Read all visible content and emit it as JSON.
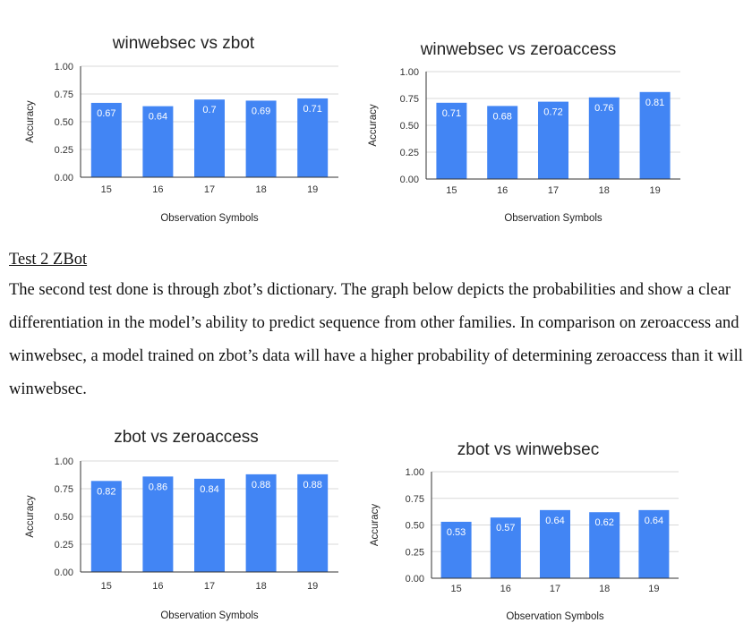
{
  "section": {
    "heading": "Test 2 ZBot",
    "paragraph": "The second test done is through zbot’s dictionary. The graph below depicts the probabilities and show a clear differentiation in the model’s ability to predict sequence from other families. In comparison on zeroaccess and winwebsec, a model trained on zbot’s data will have a higher probability of determining zeroaccess than it will winwebsec."
  },
  "colors": {
    "bar": "#4285f4",
    "grid": "#d9d9d9",
    "axis": "#333333"
  },
  "chart_data": [
    {
      "type": "bar",
      "title": "winwebsec vs zbot",
      "categories": [
        "15",
        "16",
        "17",
        "18",
        "19"
      ],
      "values": [
        0.67,
        0.64,
        0.7,
        0.69,
        0.71
      ],
      "data_labels": [
        "0.67",
        "0.64",
        "0.7",
        "0.69",
        "0.71"
      ],
      "xlabel": "Observation Symbols",
      "ylabel": "Accuracy",
      "ylim": [
        0,
        1
      ],
      "yticks": [
        "0.00",
        "0.25",
        "0.50",
        "0.75",
        "1.00"
      ],
      "grid": true
    },
    {
      "type": "bar",
      "title": "winwebsec vs zeroaccess",
      "categories": [
        "15",
        "16",
        "17",
        "18",
        "19"
      ],
      "values": [
        0.71,
        0.68,
        0.72,
        0.76,
        0.81
      ],
      "data_labels": [
        "0.71",
        "0.68",
        "0.72",
        "0.76",
        "0.81"
      ],
      "xlabel": "Observation Symbols",
      "ylabel": "Accuracy",
      "ylim": [
        0,
        1
      ],
      "yticks": [
        "0.00",
        "0.25",
        "0.50",
        "0.75",
        "1.00"
      ],
      "grid": true
    },
    {
      "type": "bar",
      "title": "zbot vs zeroaccess",
      "categories": [
        "15",
        "16",
        "17",
        "18",
        "19"
      ],
      "values": [
        0.82,
        0.86,
        0.84,
        0.88,
        0.88
      ],
      "data_labels": [
        "0.82",
        "0.86",
        "0.84",
        "0.88",
        "0.88"
      ],
      "xlabel": "Observation Symbols",
      "ylabel": "Accuracy",
      "ylim": [
        0,
        1
      ],
      "yticks": [
        "0.00",
        "0.25",
        "0.50",
        "0.75",
        "1.00"
      ],
      "grid": true
    },
    {
      "type": "bar",
      "title": "zbot vs winwebsec",
      "categories": [
        "15",
        "16",
        "17",
        "18",
        "19"
      ],
      "values": [
        0.53,
        0.57,
        0.64,
        0.62,
        0.64
      ],
      "data_labels": [
        "0.53",
        "0.57",
        "0.64",
        "0.62",
        "0.64"
      ],
      "xlabel": "Observation Symbols",
      "ylabel": "Accuracy",
      "ylim": [
        0,
        1
      ],
      "yticks": [
        "0.00",
        "0.25",
        "0.50",
        "0.75",
        "1.00"
      ],
      "grid": true
    }
  ]
}
